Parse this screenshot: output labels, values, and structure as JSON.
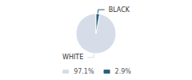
{
  "chart_data": {
    "type": "pie",
    "categories": [
      "WHITE",
      "BLACK"
    ],
    "values": [
      97.1,
      2.9
    ],
    "value_labels": [
      "97.1%",
      "2.9%"
    ],
    "colors": [
      "#d6dde8",
      "#2e5f7a"
    ],
    "legend": "bottom"
  }
}
